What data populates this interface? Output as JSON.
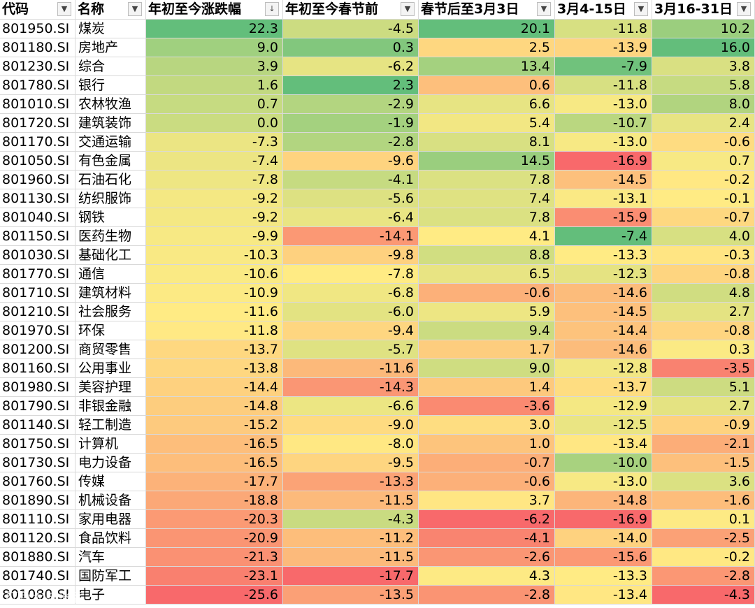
{
  "headers": [
    {
      "label": "代码",
      "filter_icon": "▼"
    },
    {
      "label": "名称",
      "filter_icon": "▼"
    },
    {
      "label": "年初至今涨跌幅",
      "filter_icon": "↓"
    },
    {
      "label": "年初至今春节前",
      "filter_icon": "▼"
    },
    {
      "label": "春节后至3月3日",
      "filter_icon": "▼"
    },
    {
      "label": "3月4-15日",
      "filter_icon": "▼"
    },
    {
      "label": "3月16-31日",
      "filter_icon": "▼"
    }
  ],
  "rows": [
    {
      "code": "801950.SI",
      "name": "煤炭",
      "v": [
        "22.3",
        "-4.5",
        "20.1",
        "-11.8",
        "10.2"
      ]
    },
    {
      "code": "801180.SI",
      "name": "房地产",
      "v": [
        "9.0",
        "0.3",
        "2.5",
        "-13.9",
        "16.0"
      ]
    },
    {
      "code": "801230.SI",
      "name": "综合",
      "v": [
        "3.9",
        "-6.2",
        "13.4",
        "-7.9",
        "3.8"
      ]
    },
    {
      "code": "801780.SI",
      "name": "银行",
      "v": [
        "1.6",
        "2.3",
        "0.6",
        "-11.8",
        "5.8"
      ]
    },
    {
      "code": "801010.SI",
      "name": "农林牧渔",
      "v": [
        "0.7",
        "-2.9",
        "6.6",
        "-13.0",
        "8.0"
      ]
    },
    {
      "code": "801720.SI",
      "name": "建筑装饰",
      "v": [
        "0.0",
        "-1.9",
        "5.4",
        "-10.7",
        "2.4"
      ]
    },
    {
      "code": "801170.SI",
      "name": "交通运输",
      "v": [
        "-7.3",
        "-2.8",
        "8.1",
        "-13.0",
        "-0.6"
      ]
    },
    {
      "code": "801050.SI",
      "name": "有色金属",
      "v": [
        "-7.4",
        "-9.6",
        "14.5",
        "-16.9",
        "0.7"
      ]
    },
    {
      "code": "801960.SI",
      "name": "石油石化",
      "v": [
        "-7.8",
        "-4.1",
        "7.8",
        "-14.5",
        "-0.2"
      ]
    },
    {
      "code": "801130.SI",
      "name": "纺织服饰",
      "v": [
        "-9.2",
        "-5.6",
        "7.4",
        "-13.1",
        "-0.1"
      ]
    },
    {
      "code": "801040.SI",
      "name": "钢铁",
      "v": [
        "-9.2",
        "-6.4",
        "7.8",
        "-15.9",
        "-0.7"
      ]
    },
    {
      "code": "801150.SI",
      "name": "医药生物",
      "v": [
        "-9.9",
        "-14.1",
        "4.1",
        "-7.4",
        "4.0"
      ]
    },
    {
      "code": "801030.SI",
      "name": "基础化工",
      "v": [
        "-10.3",
        "-9.8",
        "8.8",
        "-13.3",
        "-0.3"
      ]
    },
    {
      "code": "801770.SI",
      "name": "通信",
      "v": [
        "-10.6",
        "-7.8",
        "6.5",
        "-12.3",
        "-0.8"
      ]
    },
    {
      "code": "801710.SI",
      "name": "建筑材料",
      "v": [
        "-10.9",
        "-6.8",
        "-0.6",
        "-14.6",
        "4.8"
      ]
    },
    {
      "code": "801210.SI",
      "name": "社会服务",
      "v": [
        "-11.6",
        "-6.0",
        "5.9",
        "-14.5",
        "2.7"
      ]
    },
    {
      "code": "801970.SI",
      "name": "环保",
      "v": [
        "-11.8",
        "-9.4",
        "9.4",
        "-14.4",
        "-0.8"
      ]
    },
    {
      "code": "801200.SI",
      "name": "商贸零售",
      "v": [
        "-13.7",
        "-5.7",
        "1.7",
        "-14.6",
        "0.3"
      ]
    },
    {
      "code": "801160.SI",
      "name": "公用事业",
      "v": [
        "-13.8",
        "-11.6",
        "9.0",
        "-12.8",
        "-3.5"
      ]
    },
    {
      "code": "801980.SI",
      "name": "美容护理",
      "v": [
        "-14.4",
        "-14.3",
        "1.4",
        "-13.7",
        "5.1"
      ]
    },
    {
      "code": "801790.SI",
      "name": "非银金融",
      "v": [
        "-14.8",
        "-6.6",
        "-3.6",
        "-12.9",
        "2.7"
      ]
    },
    {
      "code": "801140.SI",
      "name": "轻工制造",
      "v": [
        "-15.2",
        "-9.0",
        "3.0",
        "-12.5",
        "-0.9"
      ]
    },
    {
      "code": "801750.SI",
      "name": "计算机",
      "v": [
        "-16.5",
        "-8.0",
        "1.0",
        "-13.4",
        "-2.1"
      ]
    },
    {
      "code": "801730.SI",
      "name": "电力设备",
      "v": [
        "-16.5",
        "-9.5",
        "-0.7",
        "-10.0",
        "-1.5"
      ]
    },
    {
      "code": "801760.SI",
      "name": "传媒",
      "v": [
        "-17.7",
        "-13.3",
        "-0.6",
        "-13.0",
        "3.6"
      ]
    },
    {
      "code": "801890.SI",
      "name": "机械设备",
      "v": [
        "-18.8",
        "-11.5",
        "3.7",
        "-14.8",
        "-1.6"
      ]
    },
    {
      "code": "801110.SI",
      "name": "家用电器",
      "v": [
        "-20.3",
        "-4.3",
        "-6.2",
        "-16.9",
        "0.1"
      ]
    },
    {
      "code": "801120.SI",
      "name": "食品饮料",
      "v": [
        "-20.9",
        "-11.2",
        "-4.1",
        "-14.0",
        "-2.5"
      ]
    },
    {
      "code": "801880.SI",
      "name": "汽车",
      "v": [
        "-21.3",
        "-11.5",
        "-2.6",
        "-15.6",
        "-0.2"
      ]
    },
    {
      "code": "801740.SI",
      "name": "国防军工",
      "v": [
        "-23.1",
        "-17.7",
        "4.3",
        "-13.3",
        "-2.8"
      ]
    },
    {
      "code": "801080.SI",
      "name": "电子",
      "v": [
        "-25.6",
        "-13.5",
        "-2.8",
        "-13.4",
        "-4.3"
      ]
    }
  ],
  "scale_colors": {
    "low": "#f8696b",
    "mid": "#ffeb84",
    "high": "#63be7b"
  },
  "watermark": "红色大脚账客"
}
